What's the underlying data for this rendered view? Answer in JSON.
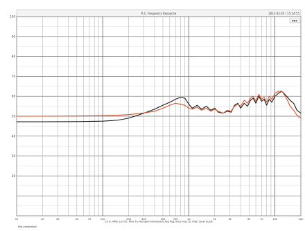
{
  "chart_data": {
    "type": "line",
    "title": "R.C. Frequency Response",
    "top_right_label": "2013.02.05 / 15:14:55",
    "legend": [
      "FR#"
    ],
    "xlabel": "Hz",
    "footer_text": "Ch.in.  MMS  1/3 Oct.  WinL  FS  Nochgain  Normalized  Avg  Avg.Hertz  Freq 1/2 Filter  Level  Guide",
    "bottom_left_text": "Plot information",
    "x_scale": "log",
    "xlim": [
      10,
      20000
    ],
    "ylim": [
      0,
      100
    ],
    "y_tick_labels": [
      "100",
      "90",
      "80",
      "70",
      "60",
      "50",
      "40",
      "30",
      "20"
    ],
    "x_tick_labels": [
      "10",
      "20",
      "30",
      "50",
      "70",
      "100",
      "200",
      "300",
      "500",
      "700",
      "1k",
      "2k",
      "3k",
      "5k",
      "7k",
      "10k",
      "20k"
    ],
    "grid": true,
    "series": [
      {
        "color": "#1a1a1a",
        "x": [
          10,
          20,
          50,
          100,
          150,
          200,
          300,
          400,
          500,
          600,
          700,
          800,
          900,
          1000,
          1100,
          1250,
          1400,
          1600,
          1800,
          2000,
          2200,
          2500,
          2800,
          3100,
          3400,
          3700,
          4000,
          4400,
          4800,
          5200,
          5600,
          6000,
          6500,
          7000,
          7500,
          8000,
          8600,
          9200,
          10000,
          11000,
          12000,
          13000,
          14000,
          15000,
          16500,
          18000,
          20000
        ],
        "y": [
          47.2,
          47.2,
          47.3,
          47.5,
          48.0,
          49.0,
          51.5,
          53.5,
          55.5,
          57.0,
          58.5,
          59.5,
          59.0,
          56.0,
          54.0,
          55.5,
          53.5,
          55.0,
          53.0,
          54.0,
          52.0,
          51.5,
          52.5,
          52.0,
          55.5,
          56.5,
          54.0,
          56.5,
          55.0,
          58.0,
          59.0,
          56.5,
          60.0,
          57.5,
          58.5,
          55.5,
          58.5,
          57.0,
          60.0,
          61.5,
          62.5,
          61.0,
          59.5,
          58.0,
          56.5,
          53.0,
          51.5
        ]
      },
      {
        "color": "#d9542e",
        "x": [
          10,
          20,
          50,
          100,
          150,
          200,
          300,
          400,
          500,
          600,
          700,
          800,
          900,
          1000,
          1100,
          1250,
          1400,
          1600,
          1800,
          2000,
          2200,
          2500,
          2800,
          3100,
          3400,
          3700,
          4000,
          4400,
          4800,
          5200,
          5600,
          6000,
          6500,
          7000,
          7500,
          8000,
          8600,
          9200,
          10000,
          11000,
          12000,
          13000,
          14000,
          15000,
          16500,
          18000,
          20000
        ],
        "y": [
          50.0,
          50.0,
          50.1,
          50.3,
          50.5,
          50.8,
          51.6,
          52.5,
          54.0,
          55.5,
          56.5,
          56.0,
          55.5,
          54.0,
          53.5,
          54.5,
          53.0,
          54.0,
          52.5,
          53.5,
          52.5,
          51.5,
          53.0,
          52.5,
          55.0,
          56.0,
          55.0,
          58.0,
          56.5,
          59.0,
          60.0,
          57.5,
          61.0,
          58.5,
          59.5,
          57.0,
          60.0,
          58.5,
          61.5,
          62.5,
          62.5,
          60.5,
          58.0,
          55.0,
          53.0,
          50.5,
          49.0
        ]
      }
    ]
  }
}
